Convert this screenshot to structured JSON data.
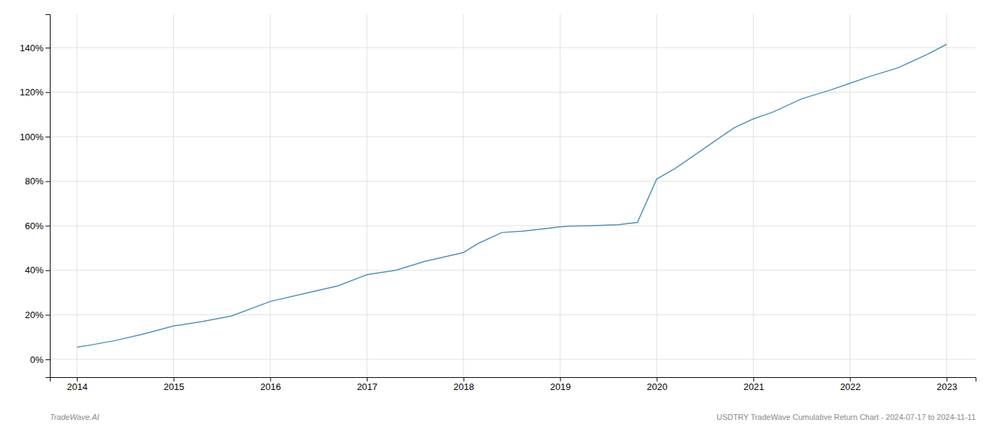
{
  "chart_data": {
    "type": "line",
    "x": [
      2014.0,
      2014.15,
      2014.4,
      2014.7,
      2015.0,
      2015.3,
      2015.6,
      2016.0,
      2016.4,
      2016.7,
      2017.0,
      2017.3,
      2017.6,
      2017.9,
      2018.0,
      2018.15,
      2018.4,
      2018.6,
      2018.8,
      2019.0,
      2019.1,
      2019.3,
      2019.6,
      2019.8,
      2020.0,
      2020.2,
      2020.4,
      2020.6,
      2020.8,
      2021.0,
      2021.2,
      2021.5,
      2021.8,
      2022.0,
      2022.2,
      2022.5,
      2022.8,
      2023.0
    ],
    "values": [
      5.5,
      6.5,
      8.5,
      11.5,
      15,
      17,
      19.5,
      26,
      30,
      33,
      38,
      40,
      44,
      47,
      48,
      52,
      57,
      57.5,
      58.5,
      59.5,
      59.8,
      60,
      60.5,
      61.5,
      81,
      86,
      92,
      98,
      104,
      108,
      111,
      117,
      121,
      124,
      127,
      131,
      137,
      141.5
    ],
    "color": "#4a90b8",
    "xlim": [
      2013.72,
      2023.3
    ],
    "ylim": [
      -8,
      155
    ],
    "xticks": [
      2014,
      2015,
      2016,
      2017,
      2018,
      2019,
      2020,
      2021,
      2022,
      2023
    ],
    "yticks": [
      {
        "value": 0,
        "label": "0%"
      },
      {
        "value": 20,
        "label": "20%"
      },
      {
        "value": 40,
        "label": "40%"
      },
      {
        "value": 60,
        "label": "60%"
      },
      {
        "value": 80,
        "label": "80%"
      },
      {
        "value": 100,
        "label": "100%"
      },
      {
        "value": 120,
        "label": "120%"
      },
      {
        "value": 140,
        "label": "140%"
      }
    ],
    "grid": true,
    "annotations": [
      "TradeWave.AI",
      "USDTRY TradeWave Cumulative Return Chart - 2024-07-17 to 2024-11-11"
    ]
  }
}
